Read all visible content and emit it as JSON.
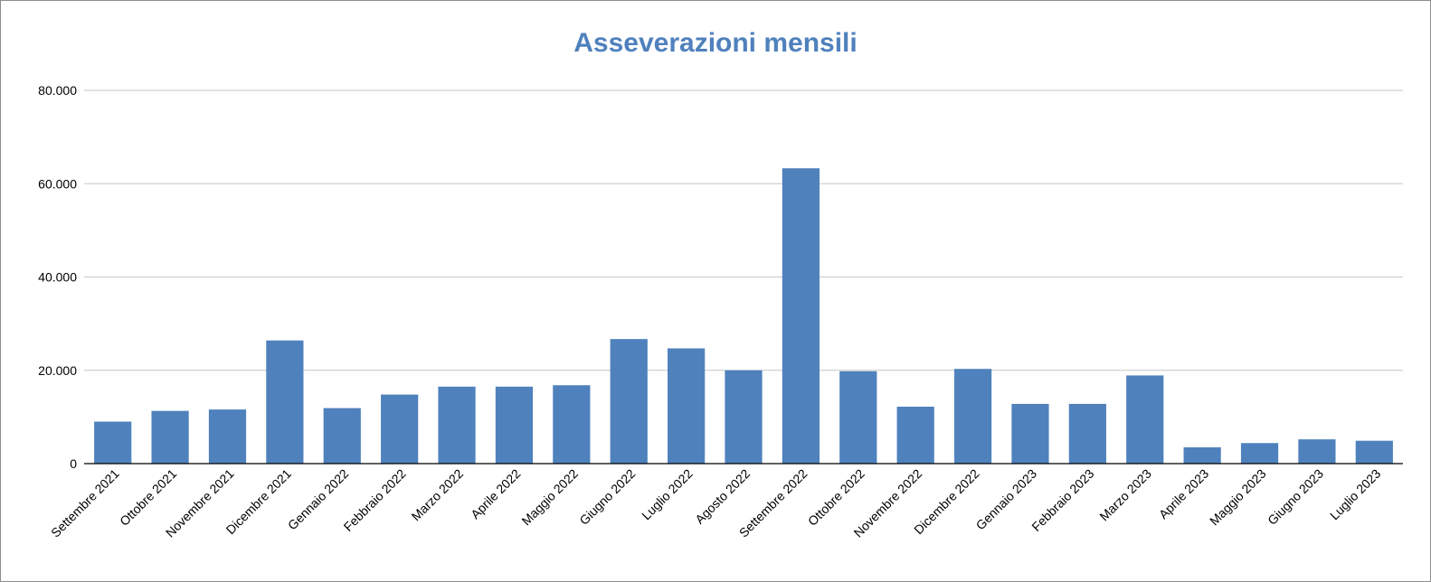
{
  "chart_data": {
    "type": "bar",
    "title": "Asseverazioni mensili",
    "xlabel": "",
    "ylabel": "",
    "ylim": [
      0,
      80000
    ],
    "y_ticks": [
      0,
      20000,
      40000,
      60000,
      80000
    ],
    "y_tick_labels": [
      "0",
      "20.000",
      "40.000",
      "60.000",
      "80.000"
    ],
    "grid": true,
    "legend": "none",
    "categories": [
      "Settembre 2021",
      "Ottobre 2021",
      "Novembre 2021",
      "Dicembre 2021",
      "Gennaio 2022",
      "Febbraio 2022",
      "Marzo 2022",
      "Aprile 2022",
      "Maggio 2022",
      "Giugno 2022",
      "Luglio 2022",
      "Agosto 2022",
      "Settembre 2022",
      "Ottobre 2022",
      "Novembre 2022",
      "Dicembre 2022",
      "Gennaio 2023",
      "Febbraio 2023",
      "Marzo 2023",
      "Aprile 2023",
      "Maggio 2023",
      "Giugno 2023",
      "Luglio 2023"
    ],
    "values": [
      9000,
      11300,
      11600,
      26400,
      11900,
      14800,
      16500,
      16500,
      16800,
      26700,
      24700,
      20000,
      63300,
      19800,
      12200,
      20300,
      12800,
      12800,
      18900,
      3500,
      4400,
      5200,
      4900
    ],
    "colors": {
      "bar": "#4f81bd",
      "title": "#4f81bd",
      "grid": "#c6c6c6",
      "axis": "#000000"
    }
  }
}
